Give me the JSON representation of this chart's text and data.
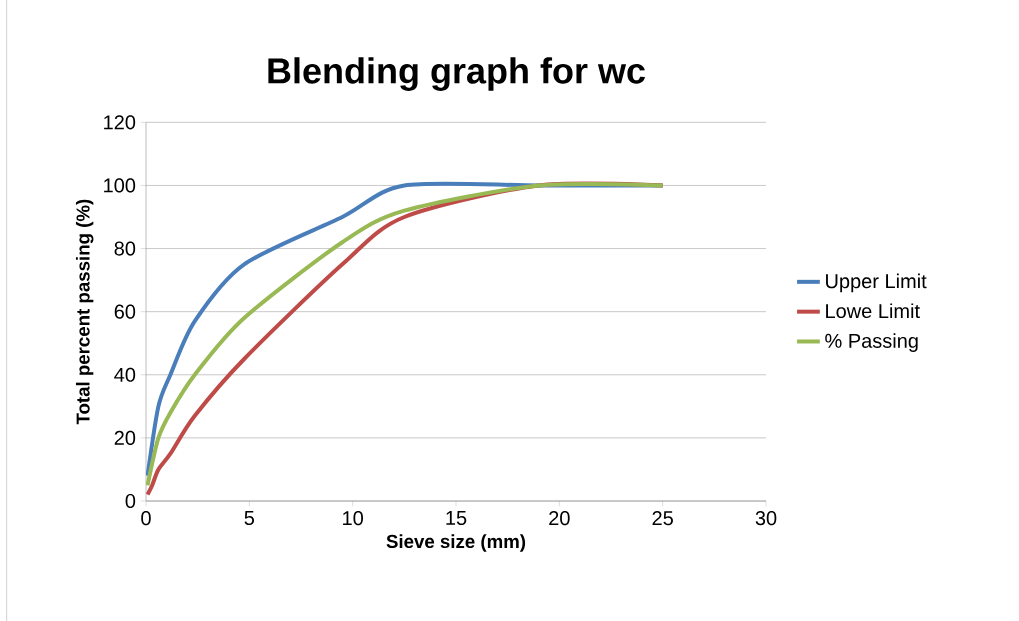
{
  "chart_data": {
    "type": "line",
    "title": "Blending graph for wc",
    "xlabel": "Sieve size (mm)",
    "ylabel": "Total percent passing (%)",
    "xlim": [
      0,
      30
    ],
    "xticks": [
      0,
      5,
      10,
      15,
      20,
      25,
      30
    ],
    "ylim": [
      0,
      120
    ],
    "yticks": [
      0,
      20,
      40,
      60,
      80,
      100,
      120
    ],
    "grid": "y",
    "legend": "right",
    "marker": "none",
    "line_style": "solid",
    "series": [
      {
        "name": "Upper Limit",
        "color": "#4a7ebb",
        "x": [
          0.075,
          0.6,
          1.18,
          2.36,
          4.75,
          9.5,
          12.5,
          19,
          25
        ],
        "values": [
          8,
          30,
          40,
          57,
          75,
          90,
          100,
          100,
          100
        ]
      },
      {
        "name": "Lowe Limit",
        "color": "#be4b48",
        "x": [
          0.075,
          0.3,
          0.6,
          1.18,
          2.36,
          4.75,
          9.5,
          12.5,
          19,
          25
        ],
        "values": [
          2,
          5,
          10,
          15,
          27,
          45,
          75,
          90,
          100,
          100
        ]
      },
      {
        "name": "% Passing",
        "color": "#98b954",
        "x": [
          0.075,
          0.6,
          1.18,
          2.36,
          4.75,
          9.5,
          12.5,
          19,
          25
        ],
        "values": [
          5,
          20,
          28,
          40,
          58,
          82,
          92,
          100,
          100
        ]
      }
    ]
  }
}
